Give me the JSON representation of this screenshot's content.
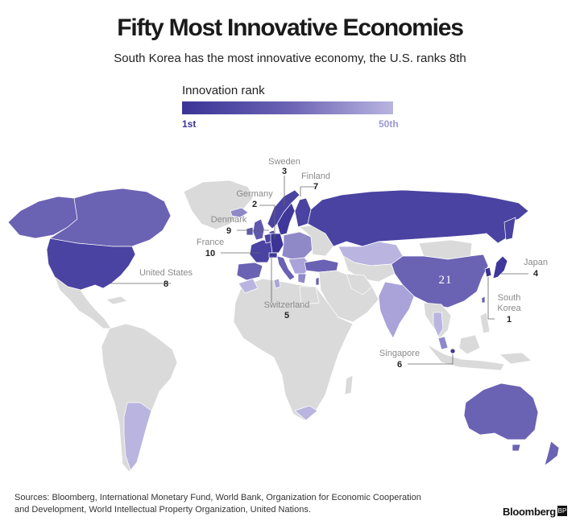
{
  "title": "Fifty Most Innovative Economies",
  "subtitle": "South Korea has the most innovative economy, the U.S. ranks 8th",
  "legend": {
    "title": "Innovation rank",
    "low_label": "1st",
    "high_label": "50th",
    "color_low": "#3b3496",
    "color_high": "#b9b5e0"
  },
  "colors": {
    "unranked": "#dadada",
    "border": "#ffffff"
  },
  "map_labels": {
    "sweden": {
      "name": "Sweden",
      "rank": "3"
    },
    "finland": {
      "name": "Finland",
      "rank": "7"
    },
    "germany": {
      "name": "Germany",
      "rank": "2"
    },
    "denmark": {
      "name": "Denmark",
      "rank": "9"
    },
    "france": {
      "name": "France",
      "rank": "10"
    },
    "united_states": {
      "name": "United States",
      "rank": "8"
    },
    "switzerland": {
      "name": "Switzerland",
      "rank": "5"
    },
    "singapore": {
      "name": "Singapore",
      "rank": "6"
    },
    "japan": {
      "name": "Japan",
      "rank": "4"
    },
    "south_korea": {
      "name": "South",
      "name2": "Korea",
      "rank": "1"
    },
    "china": {
      "rank": "21"
    }
  },
  "sources": "Sources: Bloomberg, International Monetary Fund, World Bank, Organization for Economic Cooperation and Development, World Intellectual Property Organization, United Nations.",
  "brand": "Bloomberg",
  "brand_mark": "BP"
}
